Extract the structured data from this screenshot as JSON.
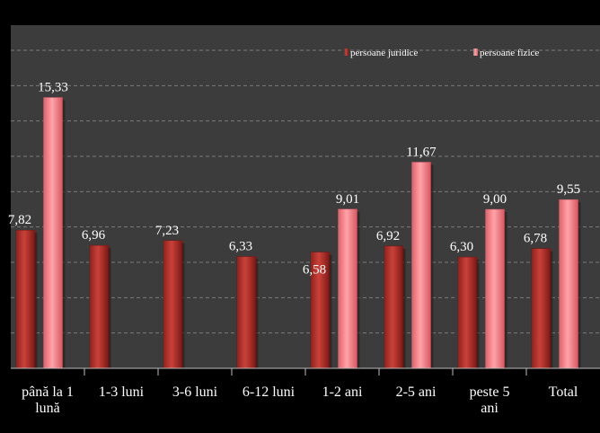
{
  "chart_data": {
    "type": "bar",
    "categories": [
      [
        "până la 1",
        "lună"
      ],
      [
        "1-3 luni"
      ],
      [
        "3-6 luni"
      ],
      [
        "6-12 luni"
      ],
      [
        "1-2 ani"
      ],
      [
        "2-5 ani"
      ],
      [
        "peste 5",
        "ani"
      ],
      [
        "Total"
      ]
    ],
    "series": [
      {
        "name": "persoane juridice",
        "values": [
          7.82,
          6.96,
          7.23,
          6.33,
          6.58,
          6.92,
          6.3,
          6.78
        ],
        "labels": [
          "7,82",
          "6,96",
          "7,23",
          "6,33",
          "6,58",
          "6,92",
          "6,30",
          "6,78"
        ],
        "color": "#b8332c"
      },
      {
        "name": "persoane fizice",
        "values": [
          15.33,
          null,
          null,
          null,
          9.01,
          11.67,
          9.0,
          9.55
        ],
        "labels": [
          "15,33",
          "",
          "",
          "",
          "9,01",
          "11,67",
          "9,00",
          "9,55"
        ],
        "color": "#f07f86"
      }
    ],
    "title": "",
    "xlabel": "",
    "ylabel": "",
    "ylim": [
      0,
      18
    ],
    "gridlines": true,
    "legend_position": "top-right",
    "colors": {
      "background": "#3c3c3c",
      "outer": "#000000",
      "grid": "#7a7a7a",
      "text": "#ffffff"
    }
  }
}
